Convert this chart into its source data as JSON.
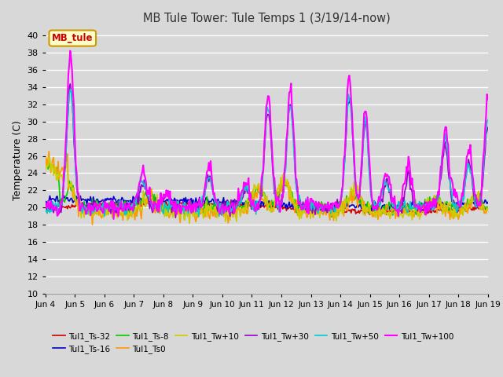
{
  "title": "MB Tule Tower: Tule Temps 1 (3/19/14-now)",
  "ylabel": "Temperature (C)",
  "ylim": [
    10,
    41
  ],
  "yticks": [
    10,
    12,
    14,
    16,
    18,
    20,
    22,
    24,
    26,
    28,
    30,
    32,
    34,
    36,
    38,
    40
  ],
  "plot_bg_color": "#d8d8d8",
  "grid_color": "#ffffff",
  "series": {
    "Tul1_Ts-32": {
      "color": "#cc0000",
      "lw": 1.2
    },
    "Tul1_Ts-16": {
      "color": "#0000cc",
      "lw": 1.2
    },
    "Tul1_Ts-8": {
      "color": "#00cc00",
      "lw": 1.2
    },
    "Tul1_Ts0": {
      "color": "#ff9900",
      "lw": 1.2
    },
    "Tul1_Tw+10": {
      "color": "#cccc00",
      "lw": 1.2
    },
    "Tul1_Tw+30": {
      "color": "#9900cc",
      "lw": 1.2
    },
    "Tul1_Tw+50": {
      "color": "#00cccc",
      "lw": 1.2
    },
    "Tul1_Tw+100": {
      "color": "#ff00ff",
      "lw": 1.5
    }
  },
  "x_labels": [
    "Jun 4",
    "Jun 5",
    "Jun 6",
    "Jun 7",
    "Jun 8",
    "Jun 9",
    "Jun 10",
    "Jun 11",
    "Jun 12",
    "Jun 13",
    "Jun 14",
    "Jun 15",
    "Jun 16",
    "Jun 17",
    "Jun 18",
    "Jun 19"
  ],
  "annotation": "MB_tule",
  "annotation_color": "#cc0000",
  "annotation_bg": "#ffffcc",
  "annotation_border": "#cc9900",
  "legend_row1": [
    "Tul1_Ts-32",
    "Tul1_Ts-16",
    "Tul1_Ts-8",
    "Tul1_Ts0",
    "Tul1_Tw+10",
    "Tul1_Tw+30"
  ],
  "legend_row2": [
    "Tul1_Tw+50",
    "Tul1_Tw+100"
  ]
}
